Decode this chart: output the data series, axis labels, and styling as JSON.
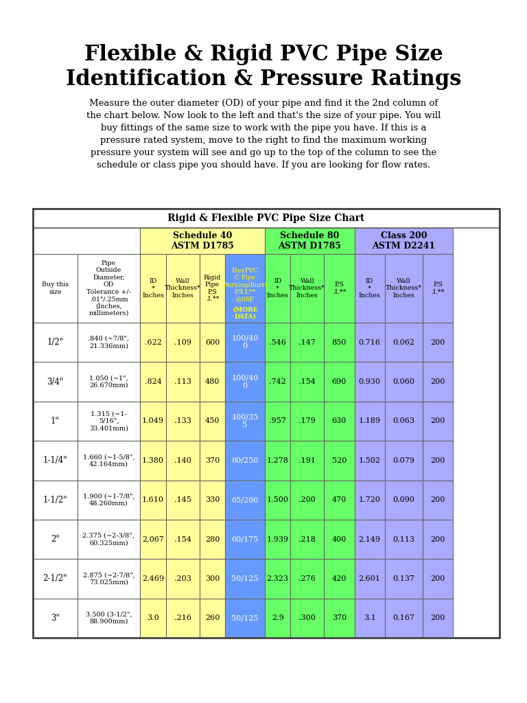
{
  "title": "Flexible & Rigid PVC Pipe Size\nIdentification & Pressure Ratings",
  "subtitle": "Measure the outer diameter (OD) of your pipe and find it the 2nd column of\nthe chart below. Now look to the left and that's the size of your pipe. You will\nbuy fittings of the same size to work with the pipe you have. If this is a\npressure rated system, move to the right to find the maximum working\npressure your system will see and go up to the top of the column to see the\nschedule or class pipe you should have. If you are looking for flow rates.",
  "table_title": "Rigid & Flexible PVC Pipe Size Chart",
  "col_groups": [
    {
      "label": "Schedule 40\nASTM D1785",
      "color": "#FFFF99",
      "span": [
        2,
        5
      ]
    },
    {
      "label": "Schedule 80\nASTM D1785",
      "color": "#66FF66",
      "span": [
        5,
        8
      ]
    },
    {
      "label": "Class 200\nASTM D2241",
      "color": "#AAAAFF",
      "span": [
        8,
        11
      ]
    }
  ],
  "sub_headers": [
    {
      "text": "ID\n*\nInches",
      "bg": "#FFFF99"
    },
    {
      "text": "Wall\nThickness*\nInches",
      "bg": "#FFFF99"
    },
    {
      "text": "Rigid\nPipe\nP.S\n.I.**",
      "bg": "#FFFF99"
    },
    {
      "text": "FlexPVC\nC Pipe\nWorking/Burst\nP.S.I.**\n@68F\n(MORE\nDATA)",
      "bg": "#6699FF"
    },
    {
      "text": "ID\n*\nInches",
      "bg": "#66FF66"
    },
    {
      "text": "Wall\nThickness*\nInches",
      "bg": "#66FF66"
    },
    {
      "text": "P.S\n.I.**",
      "bg": "#66FF66"
    },
    {
      "text": "ID\n*\nInches",
      "bg": "#AAAAFF"
    },
    {
      "text": "Wall\nThickness*\nInches",
      "bg": "#AAAAFF"
    },
    {
      "text": "P.S\n.I.**",
      "bg": "#AAAAFF"
    }
  ],
  "rows": [
    {
      "buy": "1/2\"",
      "od": ".840 (~7/8\",\n21.336mm)",
      "id40": ".622",
      "wt40": ".109",
      "psi40r": "600",
      "psi40f": "100/40\n0",
      "id80": ".546",
      "wt80": ".147",
      "psi80": "850",
      "id200": "0.716",
      "wt200": "0.062",
      "psi200": "200"
    },
    {
      "buy": "3/4\"",
      "od": "1.050 (~1\",\n26.670mm)",
      "id40": ".824",
      "wt40": ".113",
      "psi40r": "480",
      "psi40f": "100/40\n0",
      "id80": ".742",
      "wt80": ".154",
      "psi80": "690",
      "id200": "0.930",
      "wt200": "0.060",
      "psi200": "200"
    },
    {
      "buy": "1\"",
      "od": "1.315 (~1-\n5/16\",\n33.401mm)",
      "id40": "1.049",
      "wt40": ".133",
      "psi40r": "450",
      "psi40f": "100/35\n5",
      "id80": ".957",
      "wt80": ".179",
      "psi80": "630",
      "id200": "1.189",
      "wt200": "0.063",
      "psi200": "200"
    },
    {
      "buy": "1-1/4\"",
      "od": "1.660 (~1-5/8\",\n42.164mm)",
      "id40": "1.380",
      "wt40": ".140",
      "psi40r": "370",
      "psi40f": "80/250",
      "id80": "1.278",
      "wt80": ".191",
      "psi80": "520",
      "id200": "1.502",
      "wt200": "0.079",
      "psi200": "200"
    },
    {
      "buy": "1-1/2\"",
      "od": "1.900 (~1-7/8\",\n48.260mm)",
      "id40": "1.610",
      "wt40": ".145",
      "psi40r": "330",
      "psi40f": "65/200",
      "id80": "1.500",
      "wt80": ".200",
      "psi80": "470",
      "id200": "1.720",
      "wt200": "0.090",
      "psi200": "200"
    },
    {
      "buy": "2\"",
      "od": "2.375 (~2-3/8\",\n60.325mm)",
      "id40": "2.067",
      "wt40": ".154",
      "psi40r": "280",
      "psi40f": "60/175",
      "id80": "1.939",
      "wt80": ".218",
      "psi80": "400",
      "id200": "2.149",
      "wt200": "0.113",
      "psi200": "200"
    },
    {
      "buy": "2-1/2\"",
      "od": "2.875 (~2-7/8\",\n73.025mm)",
      "id40": "2.469",
      "wt40": ".203",
      "psi40r": "300",
      "psi40f": "50/125",
      "id80": "2.323",
      "wt80": ".276",
      "psi80": "420",
      "id200": "2.601",
      "wt200": "0.137",
      "psi200": "200"
    },
    {
      "buy": "3\"",
      "od": "3.500 (3-1/2\",\n88.900mm)",
      "id40": "3.0",
      "wt40": ".216",
      "psi40r": "260",
      "psi40f": "50/125",
      "id80": "2.9",
      "wt80": ".300",
      "psi80": "370",
      "id200": "3.1",
      "wt200": "0.167",
      "psi200": "200"
    }
  ],
  "colors": {
    "white": "#FFFFFF",
    "yellow": "#FFFF99",
    "green": "#66FF66",
    "purple": "#AAAAFF",
    "blue": "#6699FF",
    "border": "#999999",
    "title_bg": "#FFFFFF"
  }
}
